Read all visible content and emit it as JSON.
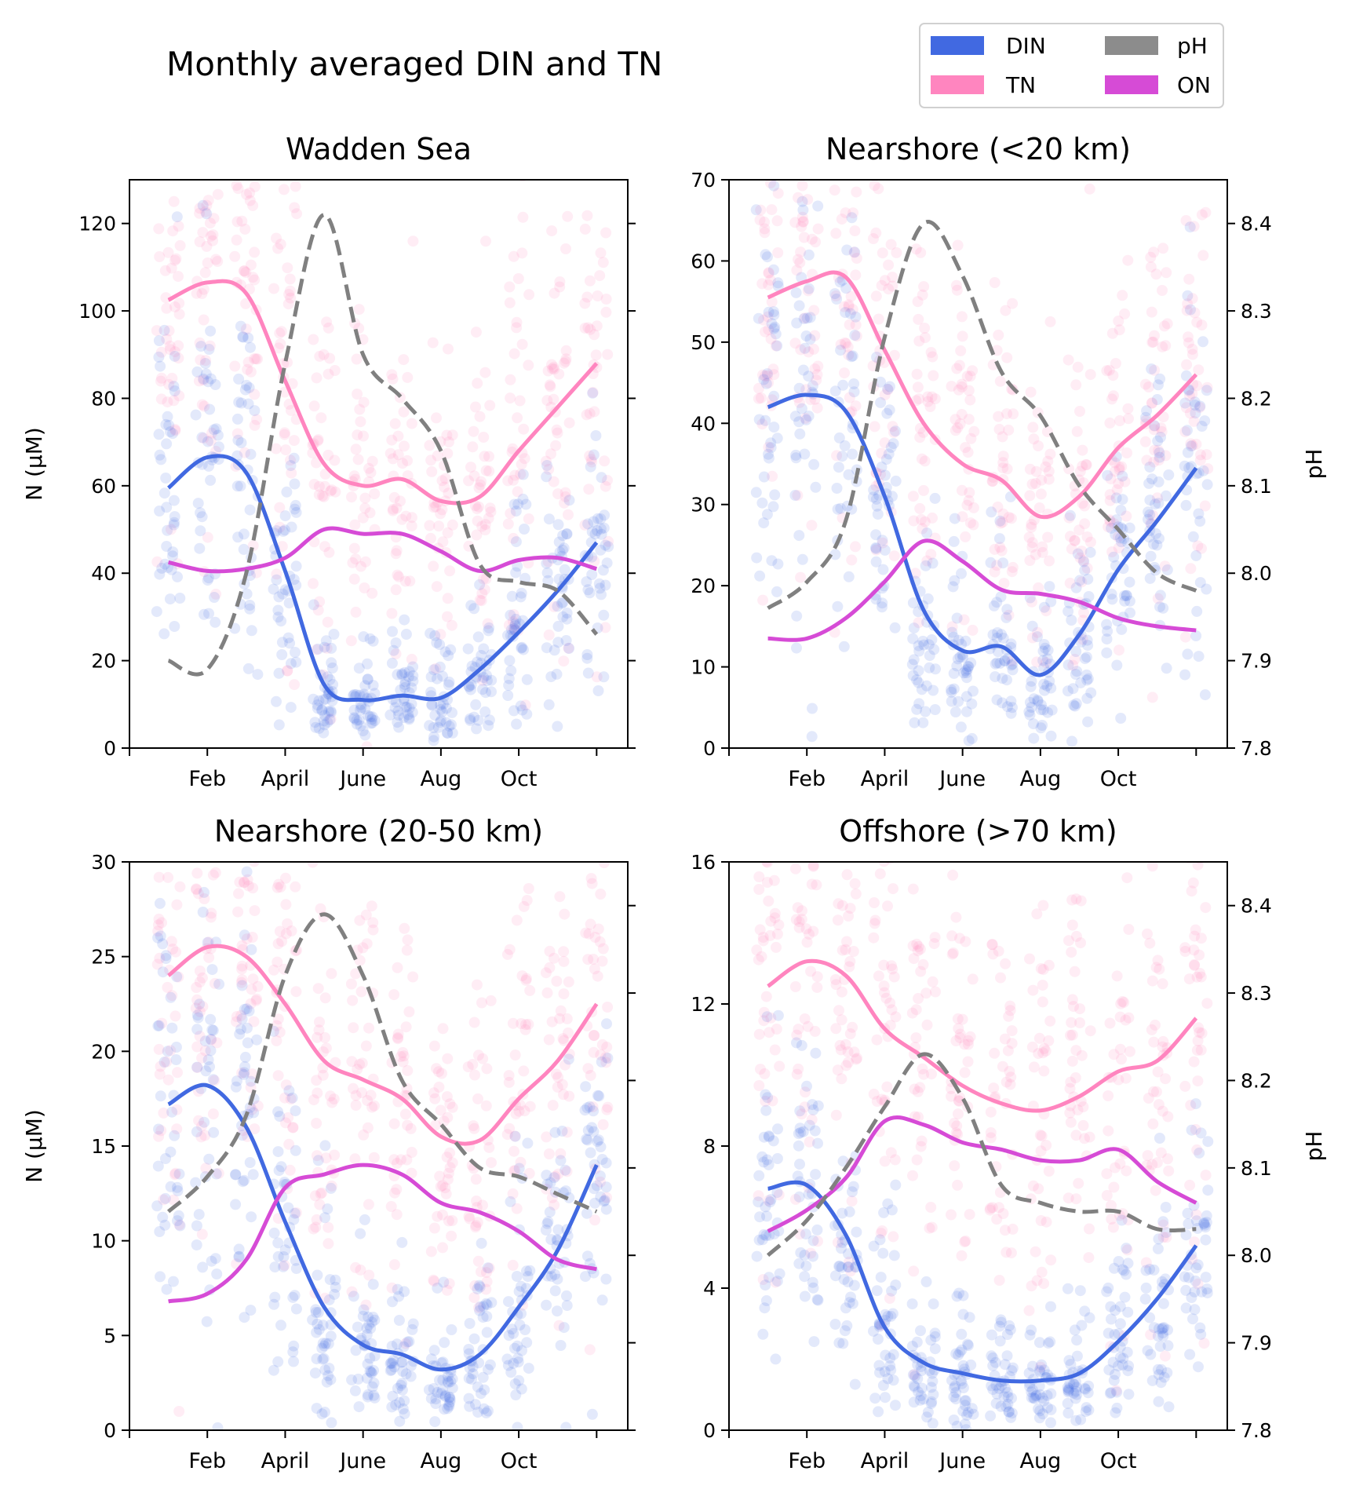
{
  "figure": {
    "title": "Monthly averaged DIN and TN",
    "legend": {
      "placement": "top-right",
      "entries": [
        {
          "key": "din",
          "label": "DIN",
          "color": "#4169e1"
        },
        {
          "key": "tn",
          "label": "TN",
          "color": "#ff85bf"
        },
        {
          "key": "ph",
          "label": "pH",
          "color": "#8c8c8c"
        },
        {
          "key": "on",
          "label": "ON",
          "color": "#d64bd6"
        }
      ]
    }
  },
  "colors": {
    "din": "#4169e1",
    "tn": "#ff85bf",
    "ph": "#808080",
    "on": "#d64bd6"
  },
  "chart_data": [
    {
      "type": "line",
      "title": "Wadden Sea",
      "ylabel": "N (µM)",
      "y2label": "",
      "x": [
        1,
        2,
        3,
        4,
        5,
        6,
        7,
        8,
        9,
        10,
        11,
        12
      ],
      "xlim": [
        0,
        12.8
      ],
      "xticks": [
        {
          "value": 2,
          "label": "Feb"
        },
        {
          "value": 4,
          "label": "April"
        },
        {
          "value": 6,
          "label": "June"
        },
        {
          "value": 8,
          "label": "Aug"
        },
        {
          "value": 10,
          "label": "Oct"
        }
      ],
      "xminor": [
        0,
        2,
        4,
        6,
        8,
        10,
        12
      ],
      "ylim": [
        0,
        130
      ],
      "yticks": [
        "0",
        "20",
        "40",
        "60",
        "80",
        "100",
        "120"
      ],
      "y2lim": [
        7.9,
        8.55
      ],
      "y2ticks": [
        7.9,
        8.0,
        8.1,
        8.2,
        8.3,
        8.4,
        8.5
      ],
      "y2ticks_labeled": false,
      "series": [
        {
          "key": "tn",
          "values": [
            102.5,
            106.5,
            104,
            84,
            65,
            60,
            61.5,
            56.5,
            57.5,
            68,
            78,
            88
          ]
        },
        {
          "key": "din",
          "values": [
            59.5,
            66.5,
            63,
            40.5,
            14.5,
            11,
            12,
            11.5,
            18,
            26.5,
            36,
            47
          ]
        },
        {
          "key": "on",
          "values": [
            42.5,
            40.5,
            41,
            43.5,
            50,
            49,
            49,
            45,
            40.5,
            43,
            43.5,
            41
          ]
        },
        {
          "key": "ph",
          "values": [
            8.0,
            7.99,
            8.1,
            8.34,
            8.51,
            8.35,
            8.3,
            8.24,
            8.11,
            8.09,
            8.08,
            8.03
          ]
        }
      ]
    },
    {
      "type": "line",
      "title": "Nearshore (<20 km)",
      "ylabel": "",
      "y2label": "pH",
      "x": [
        1,
        2,
        3,
        4,
        5,
        6,
        7,
        8,
        9,
        10,
        11,
        12
      ],
      "xlim": [
        0,
        12.8
      ],
      "xticks": [
        {
          "value": 2,
          "label": "Feb"
        },
        {
          "value": 4,
          "label": "April"
        },
        {
          "value": 6,
          "label": "June"
        },
        {
          "value": 8,
          "label": "Aug"
        },
        {
          "value": 10,
          "label": "Oct"
        }
      ],
      "xminor": [
        0,
        2,
        4,
        6,
        8,
        10,
        12
      ],
      "ylim": [
        0,
        70
      ],
      "yticks": [
        "0",
        "10",
        "20",
        "30",
        "40",
        "50",
        "60",
        "70"
      ],
      "y2lim": [
        7.8,
        8.45
      ],
      "y2ticks": [
        7.8,
        7.9,
        8.0,
        8.1,
        8.2,
        8.3,
        8.4
      ],
      "y2ticks_labeled": true,
      "series": [
        {
          "key": "tn",
          "values": [
            55.5,
            57.5,
            58,
            49,
            40,
            35,
            33,
            28.5,
            31,
            37,
            41,
            46
          ]
        },
        {
          "key": "din",
          "values": [
            42,
            43.5,
            41.5,
            31,
            17,
            12,
            12.5,
            9,
            14,
            22,
            28,
            34.5
          ]
        },
        {
          "key": "on",
          "values": [
            13.5,
            13.5,
            16,
            20.5,
            25.5,
            23,
            19.5,
            19,
            18,
            16,
            15,
            14.5
          ]
        },
        {
          "key": "ph",
          "values": [
            7.96,
            7.99,
            8.06,
            8.27,
            8.4,
            8.34,
            8.23,
            8.18,
            8.1,
            8.05,
            8.0,
            7.98
          ]
        }
      ]
    },
    {
      "type": "line",
      "title": "Nearshore (20-50 km)",
      "ylabel": "N (µM)",
      "y2label": "",
      "x": [
        1,
        2,
        3,
        4,
        5,
        6,
        7,
        8,
        9,
        10,
        11,
        12
      ],
      "xlim": [
        0,
        12.8
      ],
      "xticks": [
        {
          "value": 2,
          "label": "Feb"
        },
        {
          "value": 4,
          "label": "April"
        },
        {
          "value": 6,
          "label": "June"
        },
        {
          "value": 8,
          "label": "Aug"
        },
        {
          "value": 10,
          "label": "Oct"
        }
      ],
      "xminor": [
        0,
        2,
        4,
        6,
        8,
        10,
        12
      ],
      "ylim": [
        0,
        30
      ],
      "yticks": [
        "0",
        "5",
        "10",
        "15",
        "20",
        "25",
        "30"
      ],
      "y2lim": [
        7.8,
        8.45
      ],
      "y2ticks": [
        7.8,
        7.9,
        8.0,
        8.1,
        8.2,
        8.3,
        8.4
      ],
      "y2ticks_labeled": false,
      "series": [
        {
          "key": "tn",
          "values": [
            24,
            25.5,
            25,
            22.5,
            19.5,
            18.5,
            17.5,
            15.5,
            15.3,
            17.5,
            19.5,
            22.5
          ]
        },
        {
          "key": "din",
          "values": [
            17.2,
            18.2,
            16,
            11,
            6.5,
            4.5,
            4,
            3.2,
            4,
            6.5,
            9.5,
            14
          ]
        },
        {
          "key": "on",
          "values": [
            6.8,
            7.2,
            9,
            12.8,
            13.5,
            14,
            13.5,
            12,
            11.5,
            10.5,
            9,
            8.5
          ]
        },
        {
          "key": "ph",
          "values": [
            8.05,
            8.09,
            8.16,
            8.32,
            8.39,
            8.32,
            8.2,
            8.15,
            8.1,
            8.09,
            8.07,
            8.05
          ]
        }
      ]
    },
    {
      "type": "line",
      "title": "Offshore (>70 km)",
      "ylabel": "",
      "y2label": "pH",
      "x": [
        1,
        2,
        3,
        4,
        5,
        6,
        7,
        8,
        9,
        10,
        11,
        12
      ],
      "xlim": [
        0,
        12.8
      ],
      "xticks": [
        {
          "value": 2,
          "label": "Feb"
        },
        {
          "value": 4,
          "label": "April"
        },
        {
          "value": 6,
          "label": "June"
        },
        {
          "value": 8,
          "label": "Aug"
        },
        {
          "value": 10,
          "label": "Oct"
        }
      ],
      "xminor": [
        0,
        2,
        4,
        6,
        8,
        10,
        12
      ],
      "ylim": [
        0,
        16
      ],
      "yticks": [
        "0",
        "4",
        "8",
        "12",
        "16"
      ],
      "y2lim": [
        7.8,
        8.45
      ],
      "y2ticks": [
        7.8,
        7.9,
        8.0,
        8.1,
        8.2,
        8.3,
        8.4
      ],
      "y2ticks_labeled": true,
      "series": [
        {
          "key": "tn",
          "values": [
            12.5,
            13.2,
            12.8,
            11.3,
            10.5,
            9.7,
            9.2,
            9.0,
            9.4,
            10.1,
            10.4,
            11.6
          ]
        },
        {
          "key": "din",
          "values": [
            6.8,
            6.9,
            5.5,
            2.9,
            1.9,
            1.6,
            1.4,
            1.4,
            1.6,
            2.5,
            3.7,
            5.2
          ]
        },
        {
          "key": "on",
          "values": [
            5.6,
            6.2,
            7.1,
            8.7,
            8.6,
            8.1,
            7.9,
            7.6,
            7.6,
            7.9,
            7.0,
            6.4
          ]
        },
        {
          "key": "ph",
          "values": [
            8.0,
            8.04,
            8.1,
            8.17,
            8.23,
            8.18,
            8.08,
            8.06,
            8.05,
            8.05,
            8.03,
            8.03
          ]
        }
      ]
    }
  ]
}
